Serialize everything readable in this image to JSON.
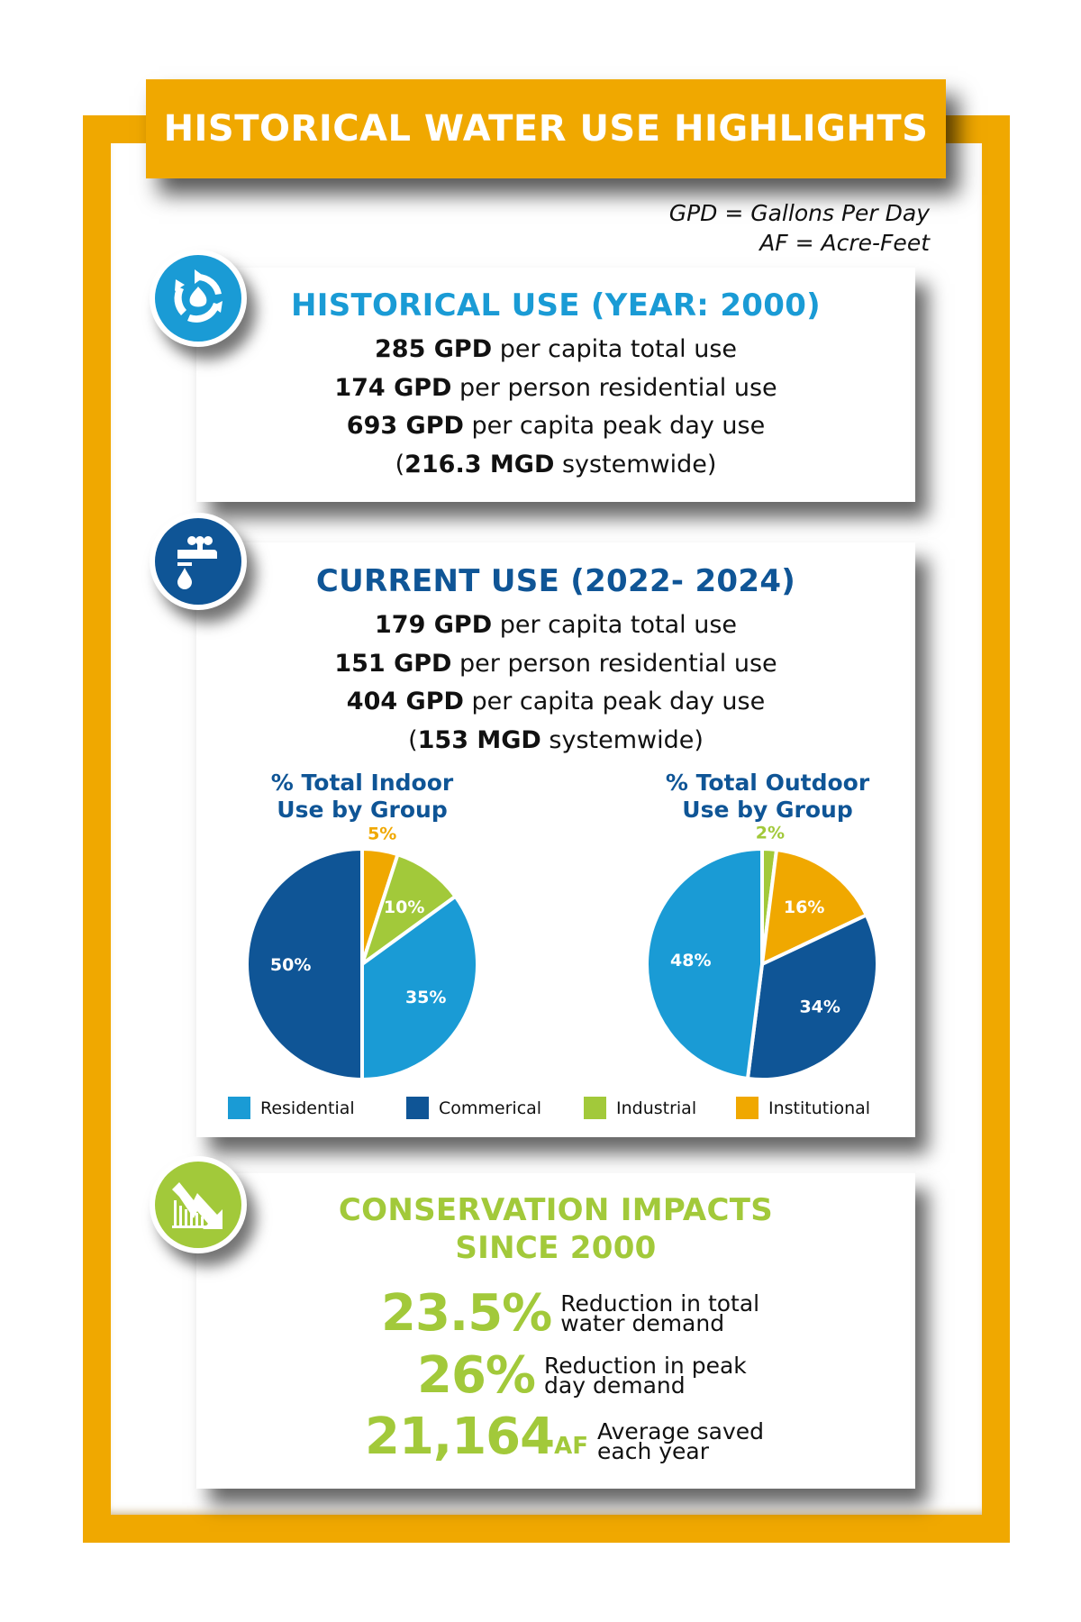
{
  "banner": {
    "title": "HISTORICAL WATER USE HIGHLIGHTS"
  },
  "abbreviations": [
    "GPD = Gallons Per Day",
    "AF = Acre-Feet"
  ],
  "historical": {
    "icon": "recycle-water-icon",
    "heading": "HISTORICAL USE (YEAR: 2000)",
    "lines": [
      {
        "bold": "285 GPD",
        "text": " per capita total use"
      },
      {
        "bold": "174 GPD",
        "text": " per person residential use"
      },
      {
        "bold": "693 GPD",
        "text": " per capita peak day use"
      },
      {
        "prefix": "(",
        "bold": "216.3 MGD",
        "text": " systemwide)"
      }
    ]
  },
  "current": {
    "icon": "faucet-drop-icon",
    "heading": "CURRENT USE (2022- 2024)",
    "lines": [
      {
        "bold": "179 GPD",
        "text": " per capita total use"
      },
      {
        "bold": "151 GPD",
        "text": " per person residential use"
      },
      {
        "bold": "404 GPD",
        "text": " per capita peak day use"
      },
      {
        "prefix": "(",
        "bold": "153 MGD",
        "text": " systemwide)"
      }
    ]
  },
  "colors": {
    "orange": "#f0a800",
    "light_blue": "#1a9bd5",
    "dark_blue": "#0f5596",
    "green": "#a2c93a"
  },
  "chart_data": [
    {
      "type": "pie",
      "title": "% Total Indoor Use by Group",
      "categories": [
        "Residential",
        "Commerical",
        "Industrial",
        "Institutional"
      ],
      "values": [
        35,
        50,
        10,
        5
      ],
      "labels": [
        "35%",
        "50%",
        "10%",
        "5%"
      ],
      "colors": [
        "#1a9bd5",
        "#0f5596",
        "#a2c93a",
        "#f0a800"
      ]
    },
    {
      "type": "pie",
      "title": "% Total Outdoor Use by Group",
      "categories": [
        "Residential",
        "Commerical",
        "Industrial",
        "Institutional"
      ],
      "values": [
        48,
        34,
        2,
        16
      ],
      "labels": [
        "48%",
        "34%",
        "2%",
        "16%"
      ],
      "colors": [
        "#1a9bd5",
        "#0f5596",
        "#a2c93a",
        "#f0a800"
      ]
    }
  ],
  "pies": {
    "indoor": {
      "title_1": "% Total Indoor",
      "title_2": "Use by Group"
    },
    "outdoor": {
      "title_1": "% Total Outdoor",
      "title_2": "Use by Group"
    }
  },
  "legend": [
    {
      "label": "Residential",
      "color": "#1a9bd5"
    },
    {
      "label": "Commerical",
      "color": "#0f5596"
    },
    {
      "label": "Industrial",
      "color": "#a2c93a"
    },
    {
      "label": "Institutional",
      "color": "#f0a800"
    }
  ],
  "conservation": {
    "icon": "downward-trend-chart-icon",
    "heading_1": "CONSERVATION IMPACTS",
    "heading_2": "SINCE 2000",
    "rows": [
      {
        "value": "23.5%",
        "unit": "",
        "desc_1": "Reduction in total",
        "desc_2": "water demand"
      },
      {
        "value": "26%",
        "unit": "",
        "desc_1": "Reduction in peak",
        "desc_2": "day demand"
      },
      {
        "value": "21,164",
        "unit": "AF",
        "desc_1": "Average saved",
        "desc_2": "each year"
      }
    ]
  }
}
